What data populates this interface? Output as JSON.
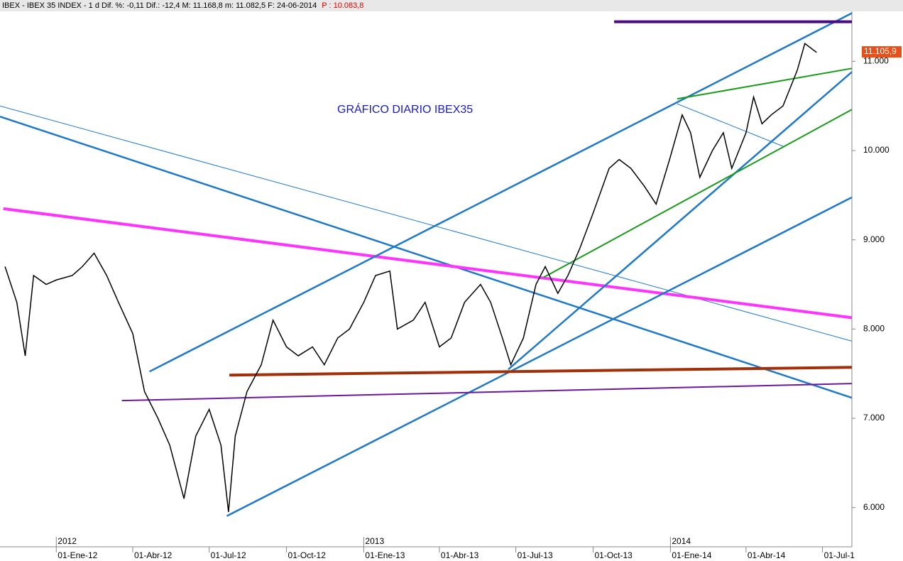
{
  "chart_data": {
    "type": "line",
    "header": "IBEX - IBEX 35 INDEX - 1 d Dif. %: -0,11 Dif.: -12,4 M: 11.168,8 m: 11.082,5 F: 24-06-2014",
    "header_price": "P : 10.083,8",
    "annotation": "GRÁFICO DIARIO IBEX35",
    "xlim": [
      "2011-10-26",
      "2014-08-05"
    ],
    "ylim": [
      5560,
      11560
    ],
    "yticks": [
      {
        "value": 6000,
        "label": "6.000"
      },
      {
        "value": 7000,
        "label": "7.000"
      },
      {
        "value": 8000,
        "label": "8.000"
      },
      {
        "value": 9000,
        "label": "9.000"
      },
      {
        "value": 10000,
        "label": "10.000"
      },
      {
        "value": 11000,
        "label": "11.000"
      }
    ],
    "xticks": [
      {
        "value": "2012-01-01",
        "label": "01-Ene-12"
      },
      {
        "value": "2012-04-01",
        "label": "01-Abr-12"
      },
      {
        "value": "2012-07-01",
        "label": "01-Jul-12"
      },
      {
        "value": "2012-10-01",
        "label": "01-Oct-12"
      },
      {
        "value": "2013-01-01",
        "label": "01-Ene-13"
      },
      {
        "value": "2013-04-01",
        "label": "01-Abr-13"
      },
      {
        "value": "2013-07-01",
        "label": "01-Jul-13"
      },
      {
        "value": "2013-10-01",
        "label": "01-Oct-13"
      },
      {
        "value": "2014-01-01",
        "label": "01-Ene-14"
      },
      {
        "value": "2014-04-01",
        "label": "01-Abr-14"
      },
      {
        "value": "2014-07-01",
        "label": "01-Jul-1"
      }
    ],
    "year_ticks": [
      {
        "value": "2012-01-01",
        "label": "2012"
      },
      {
        "value": "2013-01-01",
        "label": "2013"
      },
      {
        "value": "2014-01-01",
        "label": "2014"
      }
    ],
    "last_price": {
      "value": 11105.9,
      "label": "11.105,9"
    },
    "series": [
      {
        "name": "IBEX 35",
        "color": "#000000",
        "x": [
          "2011-11-01",
          "2011-11-15",
          "2011-11-25",
          "2011-12-05",
          "2011-12-20",
          "2012-01-01",
          "2012-01-20",
          "2012-02-01",
          "2012-02-15",
          "2012-03-01",
          "2012-03-15",
          "2012-04-01",
          "2012-04-15",
          "2012-05-01",
          "2012-05-15",
          "2012-06-01",
          "2012-06-15",
          "2012-07-01",
          "2012-07-15",
          "2012-07-24",
          "2012-08-01",
          "2012-08-15",
          "2012-09-01",
          "2012-09-15",
          "2012-10-01",
          "2012-10-15",
          "2012-11-01",
          "2012-11-15",
          "2012-12-01",
          "2012-12-15",
          "2013-01-01",
          "2013-01-15",
          "2013-02-01",
          "2013-02-10",
          "2013-03-01",
          "2013-03-15",
          "2013-04-01",
          "2013-04-15",
          "2013-05-01",
          "2013-05-20",
          "2013-06-01",
          "2013-06-15",
          "2013-06-25",
          "2013-07-10",
          "2013-07-25",
          "2013-08-05",
          "2013-08-20",
          "2013-09-01",
          "2013-09-15",
          "2013-10-01",
          "2013-10-20",
          "2013-11-01",
          "2013-11-15",
          "2013-12-01",
          "2013-12-15",
          "2013-12-31",
          "2014-01-15",
          "2014-01-25",
          "2014-02-05",
          "2014-02-20",
          "2014-03-05",
          "2014-03-15",
          "2014-04-01",
          "2014-04-10",
          "2014-04-20",
          "2014-05-01",
          "2014-05-15",
          "2014-06-01",
          "2014-06-10",
          "2014-06-24"
        ],
        "values": [
          8700,
          8300,
          7700,
          8600,
          8500,
          8550,
          8600,
          8700,
          8850,
          8600,
          8300,
          7950,
          7300,
          7000,
          6700,
          6100,
          6800,
          7100,
          6700,
          5950,
          6800,
          7300,
          7600,
          8100,
          7800,
          7700,
          7800,
          7600,
          7900,
          8000,
          8300,
          8600,
          8650,
          8000,
          8100,
          8300,
          7800,
          7900,
          8300,
          8500,
          8300,
          7900,
          7600,
          7900,
          8500,
          8700,
          8400,
          8600,
          8900,
          9300,
          9800,
          9900,
          9800,
          9600,
          9400,
          9900,
          10400,
          10200,
          9700,
          10000,
          10200,
          9800,
          10200,
          10600,
          10300,
          10400,
          10500,
          10900,
          11200,
          11100
        ]
      }
    ],
    "trendlines": [
      {
        "color": "#1f78c8",
        "width": 1,
        "x": [
          "2011-10-26",
          "2014-08-05"
        ],
        "values": [
          10500,
          7865
        ]
      },
      {
        "color": "#1f78c8",
        "width": 2.5,
        "x": [
          "2011-10-26",
          "2014-08-05"
        ],
        "values": [
          10381,
          7230
        ]
      },
      {
        "color": "#ff33ff",
        "width": 4,
        "x": [
          "2011-10-30",
          "2014-08-05"
        ],
        "values": [
          9349,
          8127
        ]
      },
      {
        "color": "#1f78c8",
        "width": 2.5,
        "x": [
          "2012-04-21",
          "2014-08-05"
        ],
        "values": [
          7524,
          11540
        ]
      },
      {
        "color": "#1f78c8",
        "width": 2.5,
        "x": [
          "2012-07-22",
          "2014-08-05"
        ],
        "values": [
          5905,
          9476
        ]
      },
      {
        "color": "#1f78c8",
        "width": 2.5,
        "x": [
          "2013-06-22",
          "2014-08-05"
        ],
        "values": [
          7548,
          10881
        ]
      },
      {
        "color": "#1a9a1a",
        "width": 2,
        "x": [
          "2013-08-03",
          "2014-08-05"
        ],
        "values": [
          8579,
          10460
        ]
      },
      {
        "color": "#1a9a1a",
        "width": 2,
        "x": [
          "2014-01-09",
          "2014-08-05"
        ],
        "values": [
          10579,
          10921
        ]
      },
      {
        "color": "#1f78c8",
        "width": 1,
        "x": [
          "2014-01-09",
          "2014-05-15"
        ],
        "values": [
          10524,
          10048
        ]
      },
      {
        "color": "#4b0a82",
        "width": 4,
        "x": [
          "2013-10-26",
          "2014-08-05"
        ],
        "values": [
          11444,
          11444
        ]
      },
      {
        "color": "#a0300a",
        "width": 4,
        "x": [
          "2012-07-25",
          "2014-08-05"
        ],
        "values": [
          7484,
          7571
        ]
      },
      {
        "color": "#6a1a9a",
        "width": 2,
        "x": [
          "2012-03-19",
          "2014-08-05"
        ],
        "values": [
          7198,
          7389
        ]
      }
    ]
  }
}
